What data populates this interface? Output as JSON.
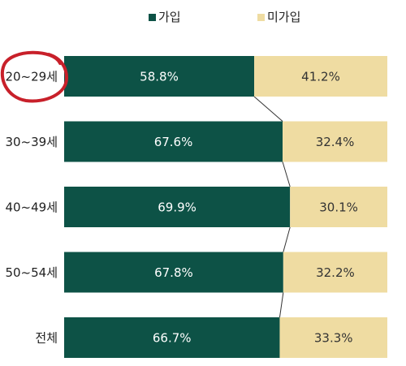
{
  "chart_data": {
    "type": "bar",
    "orientation": "horizontal",
    "stacked": true,
    "percent_stacked": true,
    "categories": [
      "20~29세",
      "30~39세",
      "40~49세",
      "50~54세",
      "전체"
    ],
    "series": [
      {
        "name": "가입",
        "values": [
          58.8,
          67.6,
          69.9,
          67.8,
          66.7
        ],
        "color": "#0d5246",
        "label_color": "#ffffff"
      },
      {
        "name": "미가입",
        "values": [
          41.2,
          32.4,
          30.1,
          32.2,
          33.3
        ],
        "color": "#efdca2",
        "label_color": "#333333"
      }
    ],
    "value_format": "{v}%",
    "xlim": [
      0,
      100
    ],
    "legend_position": "top",
    "connector_lines": true,
    "grid": false,
    "highlight": {
      "category": "20~29세",
      "style": "red-circle",
      "color": "#c8202a"
    }
  }
}
